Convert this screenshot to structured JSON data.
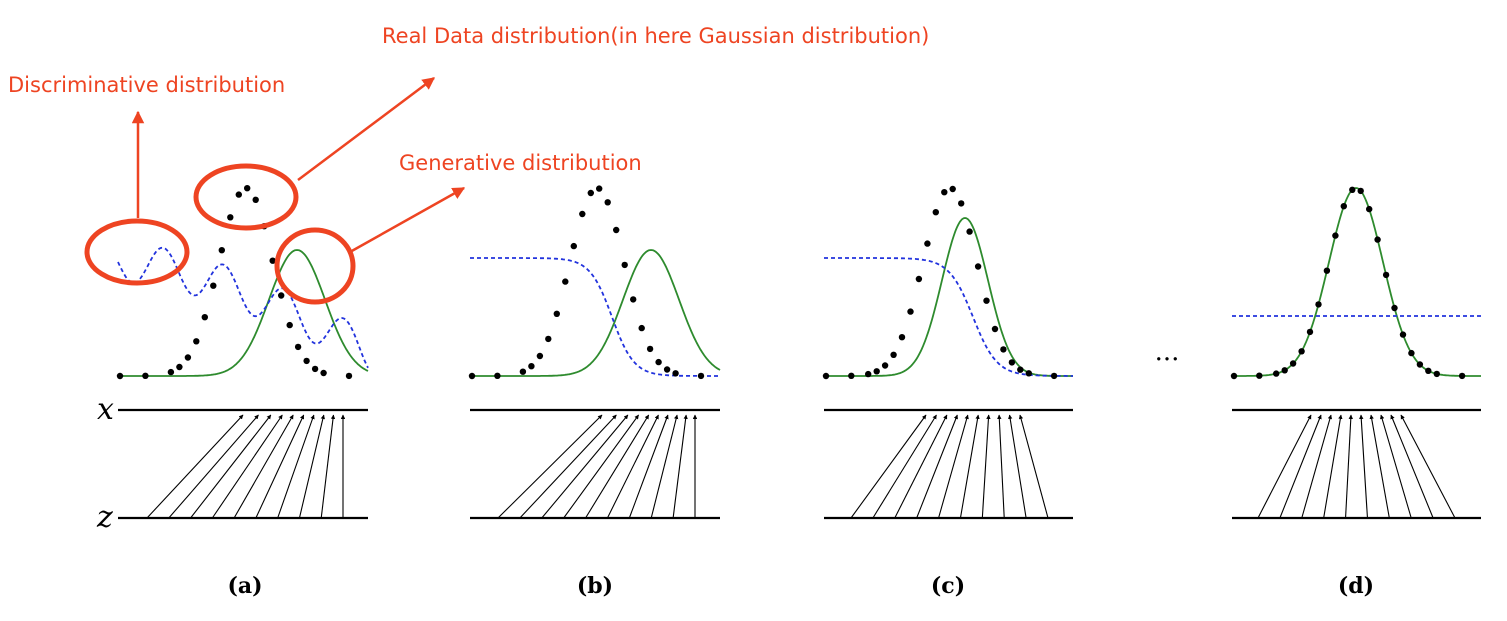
{
  "annotations": {
    "real": "Real Data distribution(in here Gaussian distribution)",
    "discriminative": "Discriminative distribution",
    "generative": "Generative distribution"
  },
  "axis_labels": {
    "x": "x",
    "z": "z"
  },
  "panels": [
    {
      "label": "(a)"
    },
    {
      "label": "(b)"
    },
    {
      "label": "(c)"
    },
    {
      "label": "(d)"
    }
  ],
  "ellipsis": "...",
  "colors": {
    "annotation": "#ee4422",
    "data_points": "#000000",
    "generative": "#2e8b2e",
    "discriminative": "#2233dd",
    "axis": "#000000"
  }
}
